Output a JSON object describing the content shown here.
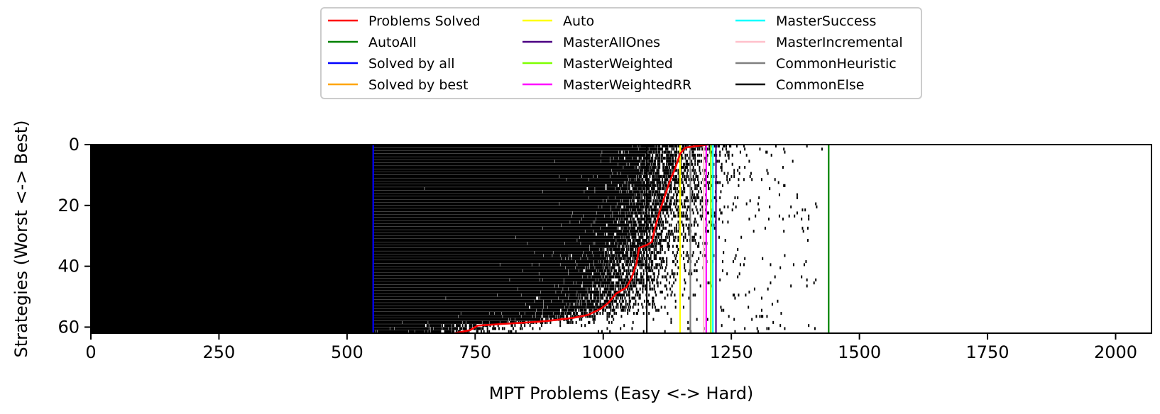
{
  "chart_data": {
    "type": "heatmap",
    "title": "",
    "xlabel": "MPT Problems (Easy <-> Hard)",
    "ylabel": "Strategies (Worst <-> Best)",
    "xlim": [
      0,
      2070
    ],
    "ylim": [
      62,
      0
    ],
    "xticks": [
      0,
      250,
      500,
      750,
      1000,
      1250,
      1500,
      1750,
      2000
    ],
    "yticks": [
      0,
      20,
      40,
      60
    ],
    "legend_position": "top-center",
    "legend": [
      {
        "label": "Problems Solved",
        "color": "#ff0000"
      },
      {
        "label": "AutoAll",
        "color": "#008000"
      },
      {
        "label": "Solved by all",
        "color": "#0000ff"
      },
      {
        "label": "Solved by best",
        "color": "#ffa500"
      },
      {
        "label": "Auto",
        "color": "#ffff00"
      },
      {
        "label": "MasterAllOnes",
        "color": "#4b0082"
      },
      {
        "label": "MasterWeighted",
        "color": "#7fff00"
      },
      {
        "label": "MasterWeightedRR",
        "color": "#ff00ff"
      },
      {
        "label": "MasterSuccess",
        "color": "#00ffff"
      },
      {
        "label": "MasterIncremental",
        "color": "#ffc0cb"
      },
      {
        "label": "CommonHeuristic",
        "color": "#808080"
      },
      {
        "label": "CommonElse",
        "color": "#000000"
      }
    ],
    "vertical_lines": [
      {
        "name": "Solved by all",
        "x": 551,
        "color": "#0000ff"
      },
      {
        "name": "Auto",
        "x": 1150,
        "color": "#ffff00"
      },
      {
        "name": "CommonHeuristic",
        "x": 1170,
        "color": "#808080"
      },
      {
        "name": "MasterIncremental",
        "x": 1196,
        "color": "#ffc0cb"
      },
      {
        "name": "MasterWeightedRR",
        "x": 1201,
        "color": "#ff00ff"
      },
      {
        "name": "MasterWeighted",
        "x": 1210,
        "color": "#7fff00"
      },
      {
        "name": "MasterSuccess",
        "x": 1214,
        "color": "#00ffff"
      },
      {
        "name": "MasterAllOnes",
        "x": 1220,
        "color": "#4b0082"
      },
      {
        "name": "CommonElse",
        "x": 1085,
        "color": "#000000"
      },
      {
        "name": "AutoAll",
        "x": 1440,
        "color": "#008000"
      }
    ],
    "problems_solved_curve": {
      "name": "Problems Solved",
      "color": "#ff0000",
      "points": [
        [
          710,
          62
        ],
        [
          740,
          61
        ],
        [
          755,
          59.5
        ],
        [
          800,
          59
        ],
        [
          850,
          58.5
        ],
        [
          890,
          58
        ],
        [
          940,
          57
        ],
        [
          970,
          56
        ],
        [
          995,
          54
        ],
        [
          1010,
          52
        ],
        [
          1025,
          49
        ],
        [
          1045,
          47
        ],
        [
          1055,
          44
        ],
        [
          1065,
          39
        ],
        [
          1070,
          34
        ],
        [
          1085,
          33
        ],
        [
          1095,
          32
        ],
        [
          1100,
          28
        ],
        [
          1110,
          22
        ],
        [
          1120,
          17
        ],
        [
          1130,
          12
        ],
        [
          1140,
          8
        ],
        [
          1150,
          3
        ],
        [
          1160,
          1
        ],
        [
          1180,
          0.5
        ],
        [
          1205,
          0
        ]
      ]
    },
    "matrix_description_free": true
  }
}
